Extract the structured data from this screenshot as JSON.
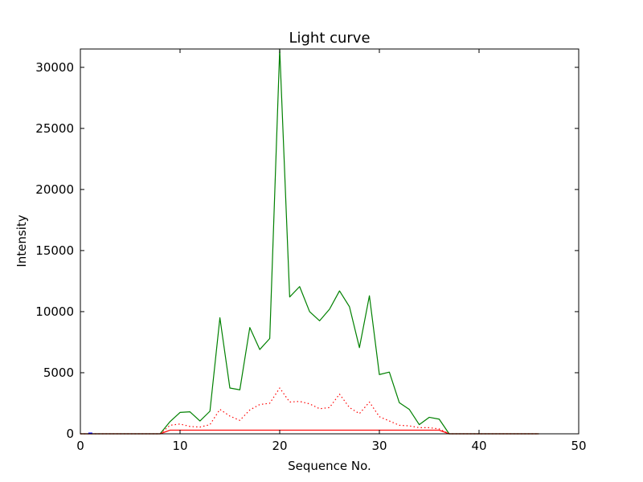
{
  "chart_data": {
    "type": "line",
    "title": "Light curve",
    "xlabel": "Sequence No.",
    "ylabel": "Intensity",
    "xlim": [
      0,
      50
    ],
    "ylim": [
      0,
      31500
    ],
    "xticks": [
      0,
      10,
      20,
      30,
      40,
      50
    ],
    "yticks": [
      0,
      5000,
      10000,
      15000,
      20000,
      25000,
      30000
    ],
    "grid": false,
    "legend": "none",
    "series": [
      {
        "color": "#008000",
        "style": "solid",
        "x": [
          0,
          1,
          2,
          3,
          4,
          5,
          6,
          7,
          8,
          9,
          10,
          11,
          12,
          13,
          14,
          15,
          16,
          17,
          18,
          19,
          20,
          21,
          22,
          23,
          24,
          25,
          26,
          27,
          28,
          29,
          30,
          31,
          32,
          33,
          34,
          35,
          36,
          37,
          38,
          39,
          40,
          41,
          42,
          43,
          44,
          45,
          46
        ],
        "values": [
          0,
          0,
          0,
          0,
          0,
          0,
          0,
          0,
          0,
          1000,
          1750,
          1800,
          1050,
          1850,
          9500,
          3750,
          3600,
          8700,
          6900,
          7800,
          31500,
          11200,
          12050,
          10000,
          9250,
          10200,
          11700,
          10400,
          7050,
          11300,
          4850,
          5050,
          2550,
          2000,
          750,
          1350,
          1200,
          0,
          0,
          0,
          0,
          0,
          0,
          0,
          0,
          0,
          0
        ]
      },
      {
        "color": "#ff0000",
        "style": "dotted",
        "x": [
          0,
          1,
          2,
          3,
          4,
          5,
          6,
          7,
          8,
          9,
          10,
          11,
          12,
          13,
          14,
          15,
          16,
          17,
          18,
          19,
          20,
          21,
          22,
          23,
          24,
          25,
          26,
          27,
          28,
          29,
          30,
          31,
          32,
          33,
          34,
          35,
          36,
          37,
          38,
          39,
          40,
          41,
          42,
          43,
          44,
          45,
          46
        ],
        "values": [
          0,
          0,
          0,
          0,
          0,
          0,
          0,
          0,
          0,
          700,
          800,
          600,
          550,
          750,
          2000,
          1450,
          1100,
          1950,
          2400,
          2500,
          3750,
          2600,
          2650,
          2450,
          2050,
          2150,
          3250,
          2150,
          1650,
          2600,
          1400,
          1050,
          700,
          650,
          500,
          500,
          400,
          0,
          0,
          0,
          0,
          0,
          0,
          0,
          0,
          0,
          0
        ]
      },
      {
        "color": "#ff0000",
        "style": "solid",
        "x": [
          0,
          1,
          2,
          3,
          4,
          5,
          6,
          7,
          8,
          9,
          10,
          11,
          12,
          13,
          14,
          15,
          16,
          17,
          18,
          19,
          20,
          21,
          22,
          23,
          24,
          25,
          26,
          27,
          28,
          29,
          30,
          31,
          32,
          33,
          34,
          35,
          36,
          37,
          38,
          39,
          40,
          41,
          42,
          43,
          44,
          45,
          46
        ],
        "values": [
          0,
          0,
          0,
          0,
          0,
          0,
          0,
          0,
          0,
          300,
          300,
          300,
          300,
          300,
          300,
          300,
          300,
          300,
          300,
          300,
          300,
          300,
          300,
          300,
          300,
          300,
          300,
          300,
          300,
          300,
          300,
          300,
          300,
          300,
          300,
          300,
          300,
          0,
          0,
          0,
          0,
          0,
          0,
          0,
          0,
          0,
          0
        ]
      },
      {
        "color": "#0000ff",
        "style": "solid",
        "x": [
          0.8,
          1.2
        ],
        "values": [
          60,
          60
        ]
      }
    ]
  }
}
